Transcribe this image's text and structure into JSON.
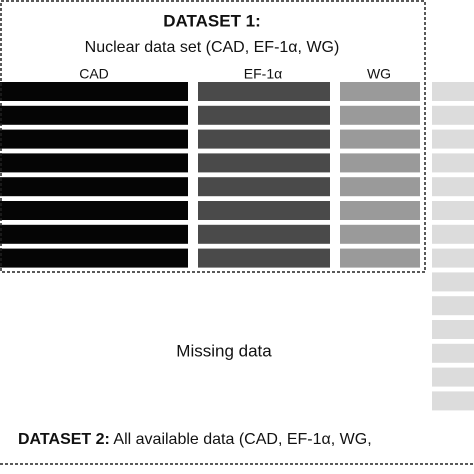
{
  "dataset1": {
    "title": "DATASET 1:",
    "subtitle": "Nuclear data set (CAD, EF-1α, WG)",
    "columns": [
      "CAD",
      "EF-1α",
      "WG"
    ]
  },
  "missing_label": "Missing data",
  "dataset2": {
    "title": "DATASET 2:",
    "text": "All available data (CAD, EF-1α, WG,"
  }
}
